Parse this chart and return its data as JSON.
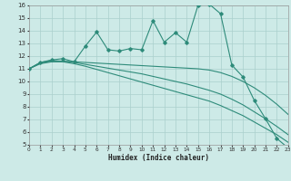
{
  "xlabel": "Humidex (Indice chaleur)",
  "x": [
    0,
    1,
    2,
    3,
    4,
    5,
    6,
    7,
    8,
    9,
    10,
    11,
    12,
    13,
    14,
    15,
    16,
    17,
    18,
    19,
    20,
    21,
    22,
    23
  ],
  "line1": [
    11.0,
    11.5,
    11.7,
    11.8,
    11.55,
    12.8,
    13.9,
    12.5,
    12.4,
    12.6,
    12.5,
    14.8,
    13.1,
    13.85,
    13.1,
    16.0,
    16.1,
    15.35,
    11.3,
    10.35,
    8.5,
    7.05,
    5.5,
    4.75
  ],
  "line2": [
    11.0,
    11.5,
    11.65,
    11.6,
    11.55,
    11.5,
    11.45,
    11.4,
    11.35,
    11.3,
    11.25,
    11.2,
    11.15,
    11.1,
    11.05,
    11.0,
    10.9,
    10.7,
    10.4,
    10.0,
    9.5,
    8.9,
    8.2,
    7.4
  ],
  "line3": [
    11.0,
    11.45,
    11.6,
    11.6,
    11.5,
    11.35,
    11.2,
    11.05,
    10.9,
    10.75,
    10.6,
    10.4,
    10.2,
    10.0,
    9.8,
    9.55,
    9.3,
    9.0,
    8.6,
    8.15,
    7.6,
    7.05,
    6.45,
    5.8
  ],
  "line4": [
    11.0,
    11.4,
    11.55,
    11.55,
    11.4,
    11.2,
    10.95,
    10.7,
    10.45,
    10.2,
    9.95,
    9.7,
    9.45,
    9.2,
    8.95,
    8.7,
    8.45,
    8.1,
    7.7,
    7.3,
    6.8,
    6.3,
    5.8,
    5.2
  ],
  "color": "#2E8B7A",
  "bg_color": "#cdeae7",
  "grid_color": "#aacfcc",
  "ylim": [
    5,
    16
  ],
  "xlim": [
    0,
    23
  ]
}
